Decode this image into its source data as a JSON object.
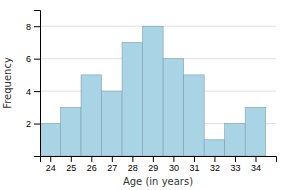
{
  "chart_data": {
    "type": "bar",
    "x": [
      24,
      25,
      26,
      27,
      28,
      29,
      30,
      31,
      32,
      33,
      34
    ],
    "values": [
      2,
      3,
      5,
      4,
      7,
      8,
      6,
      5,
      1,
      2,
      3
    ],
    "color": "#a8d4e6",
    "xlabel": "Age (in years)",
    "ylabel": "Frequency",
    "xlim": [
      23.5,
      35.0
    ],
    "ylim": [
      0,
      9
    ],
    "xticks": [
      24,
      25,
      26,
      27,
      28,
      29,
      30,
      31,
      32,
      33,
      34
    ],
    "yticks": [
      2,
      4,
      6,
      8
    ],
    "grid": true
  }
}
